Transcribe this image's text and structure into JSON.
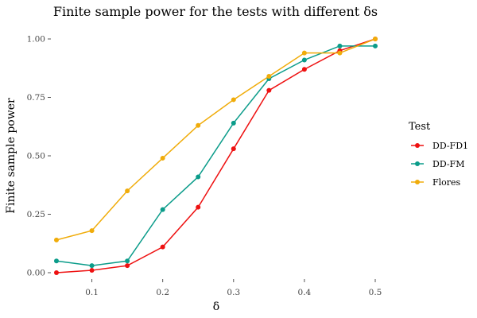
{
  "chart_data": {
    "type": "line",
    "title": "Finite sample power for the tests with different δs",
    "xlabel": "δ",
    "ylabel": "Finite sample power",
    "x": [
      0.05,
      0.1,
      0.15,
      0.2,
      0.25,
      0.3,
      0.35,
      0.4,
      0.45,
      0.5
    ],
    "xlim": [
      0.05,
      0.5
    ],
    "ylim": [
      0,
      1
    ],
    "x_ticks": [
      0.1,
      0.2,
      0.3,
      0.4,
      0.5
    ],
    "x_tick_labels": [
      "0.1",
      "0.2",
      "0.3",
      "0.4",
      "0.5"
    ],
    "y_ticks": [
      0,
      0.25,
      0.5,
      0.75,
      1
    ],
    "y_tick_labels": [
      "0.00",
      "0.25",
      "0.50",
      "0.75",
      "1.00"
    ],
    "grid": false,
    "legend": {
      "title": "Test",
      "position": "right"
    },
    "series": [
      {
        "name": "DD-FD1",
        "color": "#ee1111",
        "values": [
          0.0,
          0.01,
          0.03,
          0.11,
          0.28,
          0.53,
          0.78,
          0.87,
          0.95,
          1.0
        ]
      },
      {
        "name": "DD-FM",
        "color": "#0b9c8a",
        "values": [
          0.05,
          0.03,
          0.05,
          0.27,
          0.41,
          0.64,
          0.83,
          0.91,
          0.97,
          0.97
        ]
      },
      {
        "name": "Flores",
        "color": "#f0ac0a",
        "values": [
          0.14,
          0.18,
          0.35,
          0.49,
          0.63,
          0.74,
          0.84,
          0.94,
          0.94,
          1.0
        ]
      }
    ]
  }
}
